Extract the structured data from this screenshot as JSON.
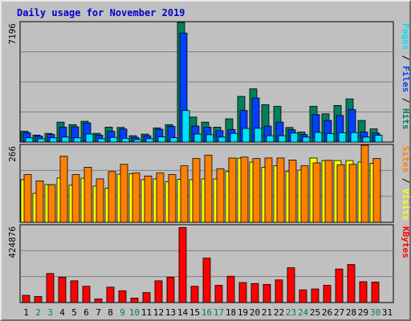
{
  "chart_data": {
    "title": "Daily usage for November 2019",
    "days": [
      "1",
      "2",
      "3",
      "4",
      "5",
      "6",
      "7",
      "8",
      "9",
      "10",
      "11",
      "12",
      "13",
      "14",
      "15",
      "16",
      "17",
      "18",
      "19",
      "20",
      "21",
      "22",
      "23",
      "24",
      "25",
      "26",
      "27",
      "28",
      "29",
      "30",
      "31"
    ],
    "weekend_days": [
      "2",
      "3",
      "9",
      "10",
      "16",
      "17",
      "23",
      "24",
      "30"
    ],
    "colors": {
      "hits": "#00805c",
      "files": "#0040ff",
      "pages": "#00e0ff",
      "visits": "#ffff00",
      "sites": "#ff8000",
      "kbytes": "#ff0000",
      "weekday_label": "#000000",
      "weekend_label": "#00805c"
    },
    "panels": [
      {
        "name": "hits-files-pages",
        "type": "bar",
        "y_max_label": "7196",
        "ylim": [
          0,
          7196
        ],
        "legend": [
          {
            "text": "Pages",
            "color": "#00e0ff"
          },
          {
            "text": " / ",
            "color": "#000000"
          },
          {
            "text": "Files",
            "color": "#0040ff"
          },
          {
            "text": " / ",
            "color": "#000000"
          },
          {
            "text": "Hits",
            "color": "#00805c"
          }
        ],
        "series": [
          {
            "name": "Hits",
            "color": "#00805c",
            "values": [
              650,
              420,
              520,
              1200,
              1050,
              1250,
              520,
              900,
              880,
              380,
              480,
              850,
              1050,
              7196,
              1500,
              1200,
              900,
              1400,
              2750,
              3200,
              2250,
              2150,
              880,
              600,
              2150,
              1700,
              2200,
              2600,
              1300,
              790,
              0
            ]
          },
          {
            "name": "Files",
            "color": "#0040ff",
            "values": [
              560,
              360,
              460,
              900,
              920,
              1150,
              420,
              640,
              780,
              280,
              380,
              770,
              950,
              6560,
              960,
              900,
              680,
              760,
              1900,
              2650,
              960,
              1200,
              740,
              450,
              1650,
              1300,
              1600,
              1950,
              600,
              540,
              0
            ]
          },
          {
            "name": "Pages",
            "color": "#00e0ff",
            "values": [
              250,
              200,
              250,
              300,
              250,
              480,
              200,
              280,
              220,
              150,
              210,
              310,
              260,
              1900,
              480,
              440,
              300,
              520,
              820,
              830,
              380,
              380,
              540,
              300,
              580,
              500,
              560,
              570,
              300,
              410,
              0
            ]
          }
        ]
      },
      {
        "name": "visits-sites",
        "type": "bar",
        "y_max_label": "266",
        "ylim": [
          0,
          266
        ],
        "legend": [
          {
            "text": "Sites",
            "color": "#ff8000"
          },
          {
            "text": " / ",
            "color": "#000000"
          },
          {
            "text": "Visits",
            "color": "#ffff00"
          }
        ],
        "series": [
          {
            "name": "Visits",
            "color": "#ffff00",
            "values": [
              147,
              100,
              130,
              153,
              128,
              152,
              125,
              118,
              166,
              168,
              147,
              150,
              140,
              148,
              147,
              150,
              150,
              175,
              221,
              208,
              190,
              195,
              175,
              180,
              222,
              213,
              213,
              213,
              208,
              203,
              0
            ]
          },
          {
            "name": "Sites",
            "color": "#ff8000",
            "values": [
              165,
              143,
              130,
              228,
              165,
              190,
              150,
              175,
              200,
              170,
              160,
              170,
              165,
              195,
              220,
              232,
              185,
              222,
              225,
              220,
              222,
              222,
              215,
              195,
              205,
              214,
              199,
              200,
              266,
              220,
              0
            ]
          }
        ]
      },
      {
        "name": "kbytes",
        "type": "bar",
        "y_max_label": "424876",
        "ylim": [
          0,
          424876
        ],
        "legend": [
          {
            "text": "KBytes",
            "color": "#ff0000"
          }
        ],
        "series": [
          {
            "name": "KBytes",
            "color": "#ff0000",
            "values": [
              40000,
              33000,
              160000,
              140000,
              120000,
              90000,
              20000,
              85000,
              65000,
              25000,
              55000,
              120000,
              140000,
              414000,
              90000,
              245000,
              95000,
              145000,
              110000,
              105000,
              100000,
              125000,
              192000,
              70000,
              75000,
              95000,
              185000,
              210000,
              115000,
              113000,
              0
            ]
          }
        ]
      }
    ]
  }
}
